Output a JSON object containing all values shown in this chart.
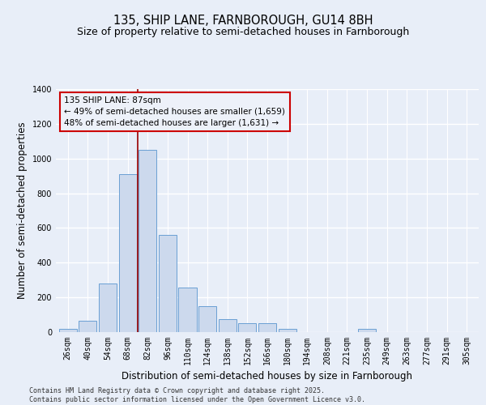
{
  "title1": "135, SHIP LANE, FARNBOROUGH, GU14 8BH",
  "title2": "Size of property relative to semi-detached houses in Farnborough",
  "xlabel": "Distribution of semi-detached houses by size in Farnborough",
  "ylabel": "Number of semi-detached properties",
  "categories": [
    "26sqm",
    "40sqm",
    "54sqm",
    "68sqm",
    "82sqm",
    "96sqm",
    "110sqm",
    "124sqm",
    "138sqm",
    "152sqm",
    "166sqm",
    "180sqm",
    "194sqm",
    "208sqm",
    "221sqm",
    "235sqm",
    "249sqm",
    "263sqm",
    "277sqm",
    "291sqm",
    "305sqm"
  ],
  "values": [
    18,
    65,
    280,
    910,
    1050,
    560,
    255,
    150,
    75,
    50,
    50,
    20,
    0,
    0,
    0,
    18,
    0,
    0,
    0,
    0,
    0
  ],
  "bar_color": "#ccd9ed",
  "bar_edge_color": "#6a9fd4",
  "vline_x": 3.5,
  "vline_color": "#990000",
  "annotation_text": "135 SHIP LANE: 87sqm\n← 49% of semi-detached houses are smaller (1,659)\n48% of semi-detached houses are larger (1,631) →",
  "annotation_box_facecolor": "#edf1f9",
  "annotation_box_edgecolor": "#cc0000",
  "annotation_text_color": "#000000",
  "ylim": [
    0,
    1400
  ],
  "yticks": [
    0,
    200,
    400,
    600,
    800,
    1000,
    1200,
    1400
  ],
  "background_color": "#e8eef8",
  "grid_color": "#ffffff",
  "footer": "Contains HM Land Registry data © Crown copyright and database right 2025.\nContains public sector information licensed under the Open Government Licence v3.0.",
  "title_fontsize": 10.5,
  "subtitle_fontsize": 9,
  "axis_label_fontsize": 8.5,
  "tick_fontsize": 7,
  "footer_fontsize": 6,
  "ann_fontsize": 7.5
}
